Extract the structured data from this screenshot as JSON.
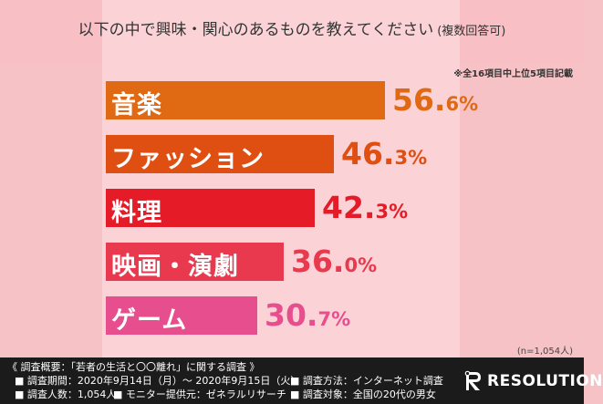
{
  "title": "以下の中で興味・関心のあるものを教えてください",
  "title_sub": "(複数回答可)",
  "note": "※全16項目中上位5項目記載",
  "n_label": "(n=1,054人)",
  "chart_data": {
    "type": "bar",
    "orientation": "horizontal",
    "categories": [
      "音楽",
      "ファッション",
      "料理",
      "映画・演劇",
      "ゲーム"
    ],
    "values": [
      56.6,
      46.3,
      42.3,
      36.0,
      30.7
    ],
    "value_labels": [
      {
        "main": "56.",
        "decimal": "6%"
      },
      {
        "main": "46.",
        "decimal": "3%"
      },
      {
        "main": "42.",
        "decimal": "3%"
      },
      {
        "main": "36.",
        "decimal": "0%"
      },
      {
        "main": "30.",
        "decimal": "7%"
      }
    ],
    "colors": [
      "#e06a14",
      "#df4f12",
      "#e51b28",
      "#e8394f",
      "#e64e8d"
    ],
    "value_colors": [
      "#e06a14",
      "#df4f12",
      "#e51b28",
      "#e8394f",
      "#e64e8d"
    ]
  },
  "footer": {
    "heading": "《 調査概要：「若者の生活と〇〇離れ」に関する調査 》",
    "period": "■ 調査期間：2020年9月14日（月）～ 2020年9月15日（火）",
    "method": "■ 調査方法：インターネット調査",
    "count": "■ 調査人数：1,054人",
    "provider": "■ モニター提供元：ゼネラルリサーチ",
    "target": "■ 調査対象：全国の20代の男女"
  },
  "brand": {
    "name": "RESOLUTION",
    "icon": "resolution-r-logo-icon"
  }
}
